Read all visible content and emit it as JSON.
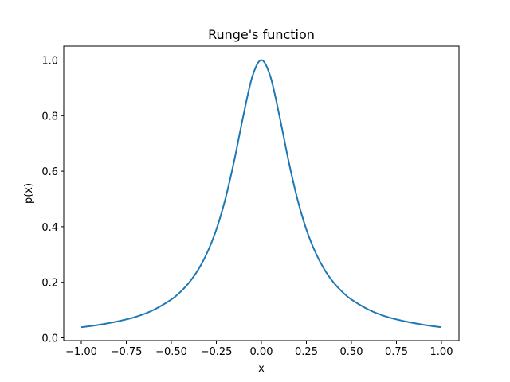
{
  "chart_data": {
    "type": "line",
    "title": "Runge's function",
    "xlabel": "x",
    "ylabel": "p(x)",
    "xlim": [
      -1.1,
      1.1
    ],
    "ylim": [
      -0.0,
      1.05
    ],
    "xticks": [
      -1.0,
      -0.75,
      -0.5,
      -0.25,
      0.0,
      0.25,
      0.5,
      0.75,
      1.0
    ],
    "xtick_labels": [
      "−1.00",
      "−0.75",
      "−0.50",
      "−0.25",
      "0.00",
      "0.25",
      "0.50",
      "0.75",
      "1.00"
    ],
    "yticks": [
      0.0,
      0.2,
      0.4,
      0.6,
      0.8,
      1.0
    ],
    "ytick_labels": [
      "0.0",
      "0.2",
      "0.4",
      "0.6",
      "0.8",
      "1.0"
    ],
    "grid": false,
    "series": [
      {
        "color": "#1f77b4",
        "x": [
          -1.0,
          -0.9,
          -0.8,
          -0.7,
          -0.6,
          -0.5,
          -0.45,
          -0.4,
          -0.35,
          -0.3,
          -0.25,
          -0.2,
          -0.15,
          -0.1,
          -0.05,
          0.0,
          0.05,
          0.1,
          0.15,
          0.2,
          0.25,
          0.3,
          0.35,
          0.4,
          0.45,
          0.5,
          0.6,
          0.7,
          0.8,
          0.9,
          1.0
        ],
        "values": [
          0.038,
          0.047,
          0.059,
          0.075,
          0.1,
          0.138,
          0.165,
          0.2,
          0.246,
          0.308,
          0.39,
          0.5,
          0.64,
          0.8,
          0.941,
          1.0,
          0.941,
          0.8,
          0.64,
          0.5,
          0.39,
          0.308,
          0.246,
          0.2,
          0.165,
          0.138,
          0.1,
          0.075,
          0.059,
          0.047,
          0.038
        ]
      }
    ]
  }
}
